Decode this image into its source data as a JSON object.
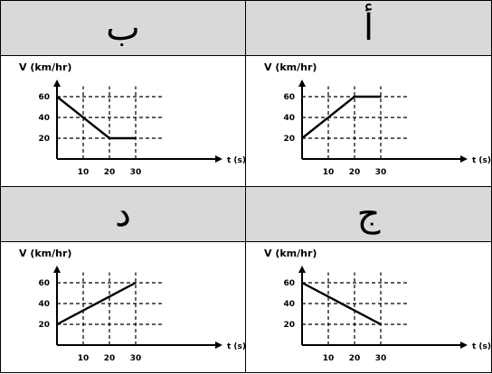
{
  "panels": [
    {
      "key": "p1",
      "label": "ب"
    },
    {
      "key": "p2",
      "label": "أ"
    },
    {
      "key": "p3",
      "label": "د"
    },
    {
      "key": "p4",
      "label": "ج"
    }
  ],
  "chart_data": [
    {
      "type": "line",
      "panel": "ب",
      "ylabel": "V (km/hr)",
      "xlabel": "t (s)",
      "x_ticks": [
        "10",
        "20",
        "30"
      ],
      "y_ticks": [
        "20",
        "40",
        "60"
      ],
      "xlim": [
        0,
        40
      ],
      "ylim": [
        0,
        70
      ],
      "grid": true,
      "x": [
        0,
        20,
        30
      ],
      "y": [
        60,
        20,
        20
      ]
    },
    {
      "type": "line",
      "panel": "أ",
      "ylabel": "V (km/hr)",
      "xlabel": "t (s)",
      "x_ticks": [
        "10",
        "20",
        "30"
      ],
      "y_ticks": [
        "20",
        "40",
        "60"
      ],
      "xlim": [
        0,
        40
      ],
      "ylim": [
        0,
        70
      ],
      "grid": true,
      "x": [
        0,
        20,
        30
      ],
      "y": [
        20,
        60,
        60
      ]
    },
    {
      "type": "line",
      "panel": "د",
      "ylabel": "V (km/hr)",
      "xlabel": "t (s)",
      "x_ticks": [
        "10",
        "20",
        "30"
      ],
      "y_ticks": [
        "20",
        "40",
        "60"
      ],
      "xlim": [
        0,
        40
      ],
      "ylim": [
        0,
        70
      ],
      "grid": true,
      "x": [
        0,
        30
      ],
      "y": [
        20,
        60
      ]
    },
    {
      "type": "line",
      "panel": "ج",
      "ylabel": "V (km/hr)",
      "xlabel": "t (s)",
      "x_ticks": [
        "10",
        "20",
        "30"
      ],
      "y_ticks": [
        "20",
        "40",
        "60"
      ],
      "xlim": [
        0,
        40
      ],
      "ylim": [
        0,
        70
      ],
      "grid": true,
      "x": [
        0,
        30
      ],
      "y": [
        60,
        20
      ]
    }
  ]
}
